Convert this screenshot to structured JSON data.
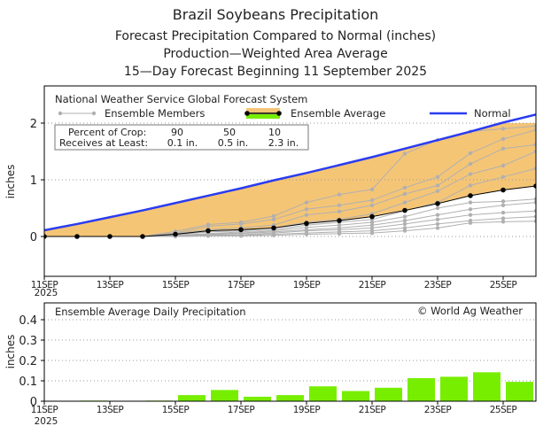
{
  "header": {
    "title": "Brazil Soybeans Precipitation",
    "subtitle1": "Forecast Precipitation Compared to Normal (inches)",
    "subtitle2": "Production—Weighted Area Average",
    "subtitle3": "15—Day Forecast Beginning 11 September 2025"
  },
  "colors": {
    "normal": "#2a3cf0",
    "fill": "#f5c576",
    "member": "#b0b0b0",
    "average": "#000000",
    "bar": "#77ee00"
  },
  "chart_data": [
    {
      "type": "line",
      "title": "National Weather Service Global Forecast System",
      "ylabel": "inches",
      "ylim": [
        -0.7,
        2.65
      ],
      "yticks": [
        "0",
        "1",
        "2"
      ],
      "grid": true,
      "xticks": [
        "11SEP",
        "13SEP",
        "15SEP",
        "17SEP",
        "19SEP",
        "21SEP",
        "23SEP",
        "25SEP"
      ],
      "xtick_year": "2025",
      "x": [
        "11SEP",
        "12SEP",
        "13SEP",
        "14SEP",
        "15SEP",
        "16SEP",
        "17SEP",
        "18SEP",
        "19SEP",
        "20SEP",
        "21SEP",
        "22SEP",
        "23SEP",
        "24SEP",
        "25SEP",
        "26SEP"
      ],
      "legend": {
        "members": "Ensemble Members",
        "average": "Ensemble Average",
        "normal": "Normal",
        "placement": "top"
      },
      "crop_box": {
        "row1_label": "Percent of Crop:",
        "row1": [
          "90",
          "50",
          "10"
        ],
        "row2_label": "Receives at Least:",
        "row2": [
          "0.1 in.",
          "0.5 in.",
          "2.3 in."
        ]
      },
      "normal": [
        0.11,
        0.22,
        0.34,
        0.46,
        0.59,
        0.72,
        0.85,
        0.99,
        1.12,
        1.26,
        1.4,
        1.55,
        1.7,
        1.85,
        2.01,
        2.15
      ],
      "average": [
        0,
        0,
        0,
        0,
        0.04,
        0.1,
        0.12,
        0.15,
        0.23,
        0.28,
        0.35,
        0.46,
        0.58,
        0.72,
        0.82,
        0.89
      ],
      "members": [
        [
          0,
          0,
          0,
          0,
          0.09,
          0.21,
          0.25,
          0.36,
          0.6,
          0.74,
          0.83,
          1.46,
          1.7,
          1.85,
          1.9,
          1.95
        ],
        [
          0,
          0,
          0,
          0,
          0.06,
          0.18,
          0.22,
          0.3,
          0.48,
          0.55,
          0.64,
          0.86,
          1.05,
          1.47,
          1.72,
          1.88
        ],
        [
          0,
          0,
          0,
          0,
          0.05,
          0.12,
          0.15,
          0.2,
          0.38,
          0.44,
          0.55,
          0.75,
          0.9,
          1.28,
          1.55,
          1.62
        ],
        [
          0,
          0,
          0,
          0,
          0.03,
          0.08,
          0.1,
          0.15,
          0.25,
          0.3,
          0.4,
          0.6,
          0.8,
          1.1,
          1.25,
          1.5
        ],
        [
          0,
          0,
          0,
          0,
          0.02,
          0.05,
          0.08,
          0.12,
          0.2,
          0.25,
          0.3,
          0.45,
          0.6,
          0.9,
          1.05,
          1.2
        ],
        [
          0,
          0,
          0,
          0,
          0.02,
          0.04,
          0.06,
          0.1,
          0.16,
          0.2,
          0.25,
          0.35,
          0.5,
          0.6,
          0.62,
          0.66
        ],
        [
          0,
          0,
          0,
          0,
          0.01,
          0.03,
          0.05,
          0.08,
          0.12,
          0.15,
          0.2,
          0.28,
          0.38,
          0.48,
          0.55,
          0.6
        ],
        [
          0,
          0,
          0,
          0,
          0.01,
          0.02,
          0.03,
          0.06,
          0.1,
          0.12,
          0.15,
          0.22,
          0.3,
          0.38,
          0.42,
          0.45
        ],
        [
          0,
          0,
          0,
          0,
          0,
          0.01,
          0.02,
          0.04,
          0.06,
          0.08,
          0.1,
          0.15,
          0.22,
          0.28,
          0.32,
          0.35
        ],
        [
          0,
          0,
          0,
          0,
          0,
          0.01,
          0.01,
          0.02,
          0.04,
          0.05,
          0.06,
          0.1,
          0.15,
          0.24,
          0.26,
          0.27
        ]
      ]
    },
    {
      "type": "bar",
      "title": "Ensemble Average Daily Precipitation",
      "annotation": "© World Ag Weather",
      "ylabel": "inches",
      "ylim": [
        0,
        0.48
      ],
      "yticks": [
        "0",
        "0.1",
        "0.2",
        "0.3",
        "0.4"
      ],
      "grid": true,
      "categories": [
        "11SEP",
        "12SEP",
        "13SEP",
        "14SEP",
        "15SEP",
        "16SEP",
        "17SEP",
        "18SEP",
        "19SEP",
        "20SEP",
        "21SEP",
        "22SEP",
        "23SEP",
        "24SEP",
        "25SEP",
        "26SEP"
      ],
      "values": [
        0,
        0.003,
        0,
        0.003,
        0.03,
        0.055,
        0.022,
        0.03,
        0.073,
        0.05,
        0.066,
        0.113,
        0.12,
        0.142,
        0.095,
        0.082
      ]
    }
  ]
}
